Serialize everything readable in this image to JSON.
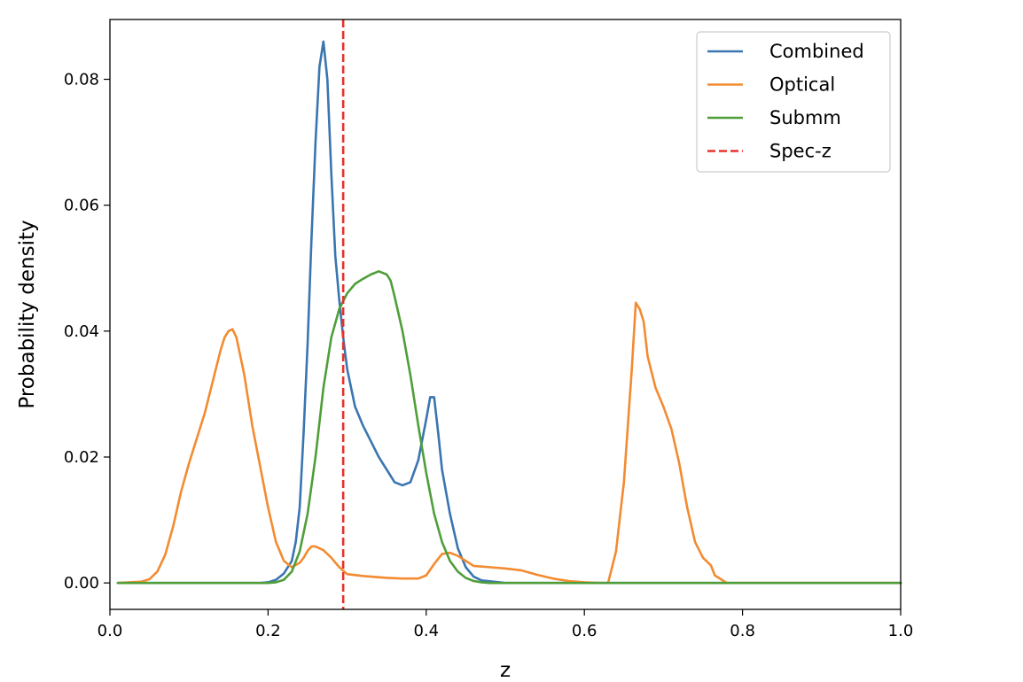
{
  "chart_data": {
    "type": "line",
    "title": "",
    "xlabel": "z",
    "ylabel": "Probability density",
    "xlim": [
      0.0,
      1.0
    ],
    "ylim": [
      -0.0042,
      0.0895
    ],
    "grid": false,
    "legend_position": "top-right",
    "x_ticks": [
      0.0,
      0.2,
      0.4,
      0.6,
      0.8,
      1.0
    ],
    "x_tick_labels": [
      "0.0",
      "0.2",
      "0.4",
      "0.6",
      "0.8",
      "1.0"
    ],
    "y_ticks": [
      0.0,
      0.02,
      0.04,
      0.06,
      0.08
    ],
    "y_tick_labels": [
      "0.00",
      "0.02",
      "0.04",
      "0.06",
      "0.08"
    ],
    "vline": {
      "name": "Spec-z",
      "x": 0.295,
      "color": "#e8312a",
      "style": "dashed"
    },
    "series": [
      {
        "name": "Combined",
        "color": "#3a75b0",
        "x": [
          0.01,
          0.19,
          0.2,
          0.21,
          0.22,
          0.23,
          0.235,
          0.24,
          0.245,
          0.25,
          0.255,
          0.26,
          0.265,
          0.27,
          0.275,
          0.28,
          0.285,
          0.29,
          0.295,
          0.3,
          0.305,
          0.31,
          0.315,
          0.32,
          0.33,
          0.34,
          0.35,
          0.36,
          0.37,
          0.38,
          0.39,
          0.4,
          0.405,
          0.41,
          0.415,
          0.42,
          0.43,
          0.44,
          0.45,
          0.46,
          0.47,
          0.5,
          1.0
        ],
        "y": [
          0.0,
          0.0,
          0.0001,
          0.0005,
          0.0015,
          0.0035,
          0.0065,
          0.012,
          0.024,
          0.038,
          0.055,
          0.07,
          0.082,
          0.086,
          0.08,
          0.065,
          0.052,
          0.045,
          0.039,
          0.034,
          0.031,
          0.028,
          0.0265,
          0.025,
          0.0225,
          0.02,
          0.018,
          0.016,
          0.0155,
          0.016,
          0.0195,
          0.026,
          0.0295,
          0.0295,
          0.024,
          0.018,
          0.011,
          0.0055,
          0.0025,
          0.001,
          0.0004,
          0.0,
          0.0
        ]
      },
      {
        "name": "Optical",
        "color": "#f28b31",
        "x": [
          0.01,
          0.04,
          0.05,
          0.06,
          0.07,
          0.08,
          0.09,
          0.1,
          0.11,
          0.12,
          0.13,
          0.14,
          0.145,
          0.15,
          0.155,
          0.16,
          0.17,
          0.18,
          0.19,
          0.2,
          0.21,
          0.22,
          0.23,
          0.24,
          0.245,
          0.25,
          0.255,
          0.26,
          0.27,
          0.28,
          0.29,
          0.3,
          0.32,
          0.35,
          0.37,
          0.39,
          0.4,
          0.41,
          0.42,
          0.43,
          0.44,
          0.45,
          0.46,
          0.48,
          0.5,
          0.52,
          0.54,
          0.56,
          0.58,
          0.6,
          0.62,
          0.63,
          0.64,
          0.65,
          0.66,
          0.665,
          0.67,
          0.675,
          0.68,
          0.69,
          0.7,
          0.71,
          0.72,
          0.73,
          0.74,
          0.75,
          0.76,
          0.765,
          0.78,
          1.0
        ],
        "y": [
          0.0,
          0.0002,
          0.0006,
          0.0018,
          0.0045,
          0.009,
          0.0145,
          0.019,
          0.023,
          0.027,
          0.032,
          0.037,
          0.039,
          0.04,
          0.0403,
          0.039,
          0.033,
          0.025,
          0.0185,
          0.012,
          0.0065,
          0.0035,
          0.0025,
          0.0032,
          0.004,
          0.0051,
          0.0058,
          0.0058,
          0.0052,
          0.004,
          0.0025,
          0.0014,
          0.0011,
          0.0008,
          0.0007,
          0.0007,
          0.0012,
          0.003,
          0.0046,
          0.0048,
          0.0043,
          0.0035,
          0.0027,
          0.0025,
          0.0023,
          0.002,
          0.0013,
          0.0007,
          0.0003,
          0.0001,
          0.0,
          0.0,
          0.005,
          0.016,
          0.034,
          0.0445,
          0.0435,
          0.0415,
          0.036,
          0.031,
          0.028,
          0.0245,
          0.019,
          0.012,
          0.0065,
          0.004,
          0.0028,
          0.0012,
          0.0,
          0.0
        ]
      },
      {
        "name": "Submm",
        "color": "#4f9e3a",
        "x": [
          0.01,
          0.2,
          0.21,
          0.22,
          0.23,
          0.24,
          0.25,
          0.26,
          0.27,
          0.28,
          0.29,
          0.3,
          0.31,
          0.32,
          0.33,
          0.34,
          0.35,
          0.355,
          0.36,
          0.37,
          0.38,
          0.39,
          0.4,
          0.41,
          0.42,
          0.43,
          0.44,
          0.45,
          0.46,
          0.47,
          0.48,
          0.5,
          1.0
        ],
        "y": [
          0.0,
          0.0,
          0.0001,
          0.0005,
          0.0018,
          0.005,
          0.011,
          0.02,
          0.031,
          0.039,
          0.0435,
          0.046,
          0.0475,
          0.0483,
          0.049,
          0.0495,
          0.049,
          0.048,
          0.0455,
          0.04,
          0.033,
          0.025,
          0.0175,
          0.011,
          0.0065,
          0.0035,
          0.0018,
          0.0008,
          0.0003,
          0.0001,
          0.0,
          0.0,
          0.0
        ]
      }
    ]
  }
}
